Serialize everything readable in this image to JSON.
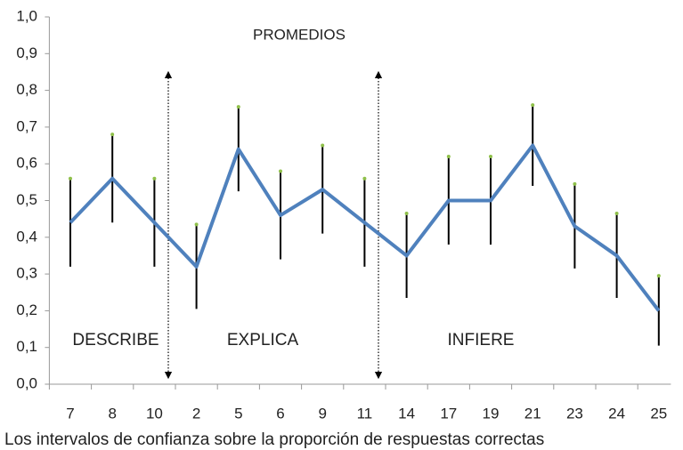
{
  "chart_data": {
    "type": "line",
    "title": "PROMEDIOS",
    "caption": "Los intervalos de confianza sobre la proporción de respuestas correctas",
    "annotations": [
      "DESCRIBE",
      "EXPLICA",
      "INFIERE"
    ],
    "categories": [
      "7",
      "8",
      "10",
      "2",
      "5",
      "6",
      "9",
      "11",
      "14",
      "17",
      "19",
      "21",
      "23",
      "24",
      "25"
    ],
    "values": [
      0.44,
      0.56,
      0.44,
      0.32,
      0.64,
      0.46,
      0.53,
      0.44,
      0.35,
      0.5,
      0.5,
      0.65,
      0.43,
      0.35,
      0.2
    ],
    "errors": [
      0.12,
      0.12,
      0.12,
      0.115,
      0.115,
      0.12,
      0.12,
      0.12,
      0.115,
      0.12,
      0.12,
      0.11,
      0.115,
      0.115,
      0.095
    ],
    "color": "#4f81bd",
    "ylim": [
      0,
      1
    ],
    "yticks": [
      {
        "value": 0,
        "label": "0,0"
      },
      {
        "value": 0.1,
        "label": "0,1"
      },
      {
        "value": 0.2,
        "label": "0,2"
      },
      {
        "value": 0.3,
        "label": "0,3"
      },
      {
        "value": 0.4,
        "label": "0,4"
      },
      {
        "value": 0.5,
        "label": "0,5"
      },
      {
        "value": 0.6,
        "label": "0,6"
      },
      {
        "value": 0.7,
        "label": "0,7"
      },
      {
        "value": 0.8,
        "label": "0,8"
      },
      {
        "value": 0.9,
        "label": "0,9"
      },
      {
        "value": 1,
        "label": "1,0"
      }
    ]
  }
}
